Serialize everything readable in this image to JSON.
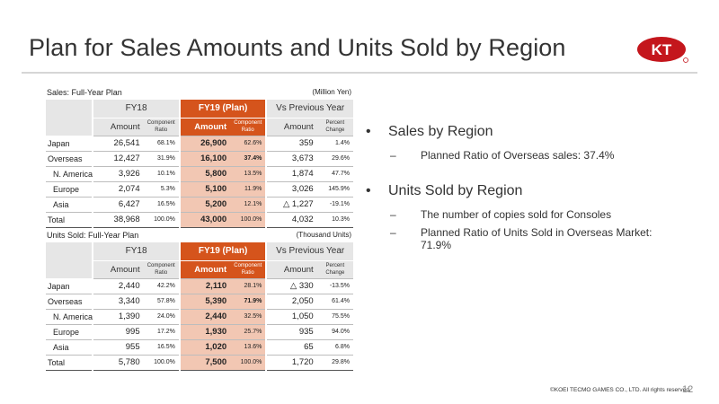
{
  "title": "Plan for Sales Amounts and Units Sold by Region",
  "logo_text": "KT",
  "sales": {
    "caption": "Sales: Full-Year Plan",
    "unit": "(Million Yen)",
    "headers": {
      "fy18": "FY18",
      "fy19": "FY19 (Plan)",
      "vs": "Vs Previous Year",
      "amount": "Amount",
      "component_ratio": "Component Ratio",
      "percent_change": "Percent Change"
    },
    "rows": [
      {
        "label": "Japan",
        "fy18_amt": "26,541",
        "fy18_ratio": "68.1%",
        "fy19_amt": "26,900",
        "fy19_ratio": "62.6%",
        "vs_amt": "359",
        "vs_pct": "1.4%"
      },
      {
        "label": "Overseas",
        "fy18_amt": "12,427",
        "fy18_ratio": "31.9%",
        "fy19_amt": "16,100",
        "fy19_ratio": "37.4%",
        "vs_amt": "3,673",
        "vs_pct": "29.6%"
      },
      {
        "label": "N. America",
        "fy18_amt": "3,926",
        "fy18_ratio": "10.1%",
        "fy19_amt": "5,800",
        "fy19_ratio": "13.5%",
        "vs_amt": "1,874",
        "vs_pct": "47.7%"
      },
      {
        "label": "Europe",
        "fy18_amt": "2,074",
        "fy18_ratio": "5.3%",
        "fy19_amt": "5,100",
        "fy19_ratio": "11.9%",
        "vs_amt": "3,026",
        "vs_pct": "145.9%"
      },
      {
        "label": "Asia",
        "fy18_amt": "6,427",
        "fy18_ratio": "16.5%",
        "fy19_amt": "5,200",
        "fy19_ratio": "12.1%",
        "vs_amt": "△ 1,227",
        "vs_pct": "-19.1%"
      },
      {
        "label": "Total",
        "fy18_amt": "38,968",
        "fy18_ratio": "100.0%",
        "fy19_amt": "43,000",
        "fy19_ratio": "100.0%",
        "vs_amt": "4,032",
        "vs_pct": "10.3%"
      }
    ]
  },
  "units": {
    "caption": "Units Sold: Full-Year Plan",
    "unit": "(Thousand Units)",
    "headers": {
      "fy18": "FY18",
      "fy19": "FY19 (Plan)",
      "vs": "Vs Previous Year",
      "amount": "Amount",
      "component_ratio": "Component Ratio",
      "percent_change": "Percent Change"
    },
    "rows": [
      {
        "label": "Japan",
        "fy18_amt": "2,440",
        "fy18_ratio": "42.2%",
        "fy19_amt": "2,110",
        "fy19_ratio": "28.1%",
        "vs_amt": "△ 330",
        "vs_pct": "-13.5%"
      },
      {
        "label": "Overseas",
        "fy18_amt": "3,340",
        "fy18_ratio": "57.8%",
        "fy19_amt": "5,390",
        "fy19_ratio": "71.9%",
        "vs_amt": "2,050",
        "vs_pct": "61.4%"
      },
      {
        "label": "N. America",
        "fy18_amt": "1,390",
        "fy18_ratio": "24.0%",
        "fy19_amt": "2,440",
        "fy19_ratio": "32.5%",
        "vs_amt": "1,050",
        "vs_pct": "75.5%"
      },
      {
        "label": "Europe",
        "fy18_amt": "995",
        "fy18_ratio": "17.2%",
        "fy19_amt": "1,930",
        "fy19_ratio": "25.7%",
        "vs_amt": "935",
        "vs_pct": "94.0%"
      },
      {
        "label": "Asia",
        "fy18_amt": "955",
        "fy18_ratio": "16.5%",
        "fy19_amt": "1,020",
        "fy19_ratio": "13.6%",
        "vs_amt": "65",
        "vs_pct": "6.8%"
      },
      {
        "label": "Total",
        "fy18_amt": "5,780",
        "fy18_ratio": "100.0%",
        "fy19_amt": "7,500",
        "fy19_ratio": "100.0%",
        "vs_amt": "1,720",
        "vs_pct": "29.8%"
      }
    ]
  },
  "bullets": {
    "sales_heading": "Sales by Region",
    "sales_item": "Planned Ratio of Overseas sales: 37.4%",
    "units_heading": "Units Sold by Region",
    "units_item_1": "The number of copies sold for Consoles",
    "units_item_2": "Planned Ratio of Units Sold in Overseas Market:  71.9%"
  },
  "footer": {
    "copyright": "©KOEI TECMO GAMES CO., LTD.  All rights reserved.",
    "page_number": "12"
  },
  "colors": {
    "accent": "#d5541c",
    "accent_light": "#f2c7b3",
    "header_gray": "#e6e6e6",
    "logo_red": "#c4161c"
  }
}
